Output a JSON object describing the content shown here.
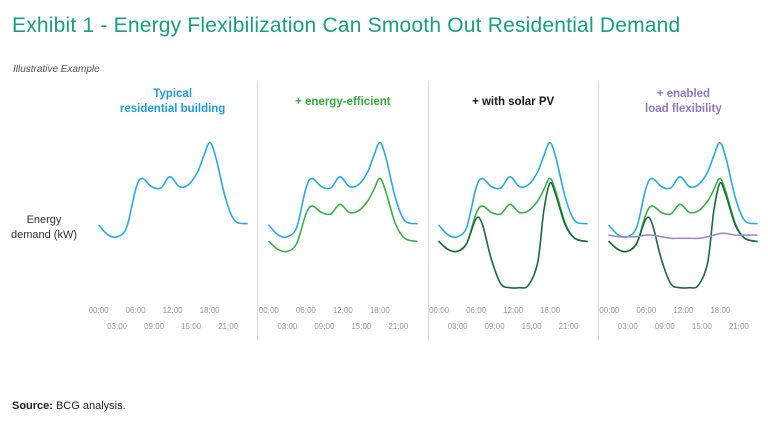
{
  "page": {
    "title": "Exhibit 1 - Energy Flexibilization Can Smooth Out Residential Demand",
    "note": "Illustrative Example",
    "ylabel": "Energy\ndemand (kW)",
    "source_label": "Source:",
    "source_text": "BCG analysis."
  },
  "colors": {
    "exhibit_title": "#18a07b",
    "typical_blue": "#2aa9e0",
    "efficient_green": "#3aae49",
    "solar_dark_green": "#1b6b3a",
    "flexibility_purple": "#a08cc8",
    "divider": "#d9d9d9",
    "tick_gray": "#999999"
  },
  "chart_data": [
    {
      "type": "line",
      "title": "Typical\nresidential building",
      "title_color": "#1e9cd7",
      "xlabel": "",
      "ylabel": "Energy demand (kW)",
      "xlim": [
        0,
        24
      ],
      "ylim": [
        0,
        10
      ],
      "grid": false,
      "legend": "none",
      "x": [
        0,
        1.5,
        3,
        4.5,
        6,
        7,
        8.5,
        10,
        11.5,
        13,
        14.5,
        16,
        17,
        18,
        19,
        20.5,
        22,
        24
      ],
      "series": [
        {
          "name": "typical-demand",
          "color": "#2aa9e0",
          "values": [
            4.3,
            3.7,
            3.6,
            4.2,
            6.6,
            7.2,
            6.7,
            6.6,
            7.3,
            6.7,
            6.8,
            7.6,
            8.6,
            9.4,
            8.4,
            6.0,
            4.6,
            4.4
          ]
        }
      ],
      "xticks": [
        {
          "t": 0,
          "label": "00:00",
          "row": 1
        },
        {
          "t": 3,
          "label": "03:00",
          "row": 2
        },
        {
          "t": 6,
          "label": "06:00",
          "row": 1
        },
        {
          "t": 9,
          "label": "09:00",
          "row": 2
        },
        {
          "t": 12,
          "label": "12:00",
          "row": 1
        },
        {
          "t": 15,
          "label": "15:00",
          "row": 2
        },
        {
          "t": 18,
          "label": "18:00",
          "row": 1
        },
        {
          "t": 21,
          "label": "21:00",
          "row": 2
        }
      ]
    },
    {
      "type": "line",
      "title": "+ energy-efficient",
      "title_color": "#35a93c",
      "xlabel": "",
      "ylabel": "Energy demand (kW)",
      "xlim": [
        0,
        24
      ],
      "ylim": [
        0,
        10
      ],
      "grid": false,
      "legend": "none",
      "x": [
        0,
        1.5,
        3,
        4.5,
        6,
        7,
        8.5,
        10,
        11.5,
        13,
        14.5,
        16,
        17,
        18,
        19,
        20.5,
        22,
        24
      ],
      "series": [
        {
          "name": "typical-demand",
          "color": "#2aa9e0",
          "values": [
            4.3,
            3.7,
            3.6,
            4.2,
            6.6,
            7.2,
            6.7,
            6.6,
            7.3,
            6.7,
            6.8,
            7.6,
            8.6,
            9.4,
            8.4,
            6.0,
            4.6,
            4.4
          ]
        },
        {
          "name": "efficient-demand",
          "color": "#3aae49",
          "values": [
            3.3,
            2.8,
            2.7,
            3.2,
            5.0,
            5.5,
            5.1,
            5.0,
            5.6,
            5.1,
            5.2,
            5.8,
            6.5,
            7.2,
            6.3,
            4.4,
            3.5,
            3.3
          ]
        }
      ],
      "xticks": [
        {
          "t": 0,
          "label": "00:00",
          "row": 1
        },
        {
          "t": 3,
          "label": "03:00",
          "row": 2
        },
        {
          "t": 6,
          "label": "06:00",
          "row": 1
        },
        {
          "t": 9,
          "label": "09:00",
          "row": 2
        },
        {
          "t": 12,
          "label": "12:00",
          "row": 1
        },
        {
          "t": 15,
          "label": "15:00",
          "row": 2
        },
        {
          "t": 18,
          "label": "18:00",
          "row": 1
        },
        {
          "t": 21,
          "label": "21:00",
          "row": 2
        }
      ]
    },
    {
      "type": "line",
      "title": "+ with solar PV",
      "title_color": "#1a1a1a",
      "xlabel": "",
      "ylabel": "Energy demand (kW)",
      "xlim": [
        0,
        24
      ],
      "ylim": [
        0,
        10
      ],
      "grid": false,
      "legend": "none",
      "x": [
        0,
        1.5,
        3,
        4.5,
        6,
        7,
        8.5,
        10,
        11.5,
        13,
        14.5,
        16,
        17,
        18,
        19,
        20.5,
        22,
        24
      ],
      "series": [
        {
          "name": "typical-demand",
          "color": "#2aa9e0",
          "values": [
            4.3,
            3.7,
            3.6,
            4.2,
            6.6,
            7.2,
            6.7,
            6.6,
            7.3,
            6.7,
            6.8,
            7.6,
            8.6,
            9.4,
            8.4,
            6.0,
            4.6,
            4.4
          ]
        },
        {
          "name": "efficient-demand",
          "color": "#3aae49",
          "values": [
            3.3,
            2.8,
            2.7,
            3.2,
            5.0,
            5.5,
            5.1,
            5.0,
            5.6,
            5.1,
            5.2,
            5.8,
            6.5,
            7.2,
            6.3,
            4.4,
            3.5,
            3.3
          ]
        },
        {
          "name": "net-demand-with-solar",
          "color": "#1b6b3a",
          "values": [
            3.3,
            2.8,
            2.7,
            3.2,
            4.7,
            4.4,
            2.2,
            0.7,
            0.45,
            0.45,
            0.6,
            2.0,
            5.2,
            6.9,
            6.1,
            4.3,
            3.5,
            3.3
          ]
        }
      ],
      "xticks": [
        {
          "t": 0,
          "label": "00:00",
          "row": 1
        },
        {
          "t": 3,
          "label": "03:00",
          "row": 2
        },
        {
          "t": 6,
          "label": "06:00",
          "row": 1
        },
        {
          "t": 9,
          "label": "09:00",
          "row": 2
        },
        {
          "t": 12,
          "label": "12:00",
          "row": 1
        },
        {
          "t": 15,
          "label": "15:00",
          "row": 2
        },
        {
          "t": 18,
          "label": "18:00",
          "row": 1
        },
        {
          "t": 21,
          "label": "21:00",
          "row": 2
        }
      ]
    },
    {
      "type": "line",
      "title": "+ enabled\nload flexibility",
      "title_color": "#9477c4",
      "xlabel": "",
      "ylabel": "Energy demand (kW)",
      "xlim": [
        0,
        24
      ],
      "ylim": [
        0,
        10
      ],
      "grid": false,
      "legend": "none",
      "x": [
        0,
        1.5,
        3,
        4.5,
        6,
        7,
        8.5,
        10,
        11.5,
        13,
        14.5,
        16,
        17,
        18,
        19,
        20.5,
        22,
        24
      ],
      "series": [
        {
          "name": "typical-demand",
          "color": "#2aa9e0",
          "values": [
            4.3,
            3.7,
            3.6,
            4.2,
            6.6,
            7.2,
            6.7,
            6.6,
            7.3,
            6.7,
            6.8,
            7.6,
            8.6,
            9.4,
            8.4,
            6.0,
            4.6,
            4.4
          ]
        },
        {
          "name": "efficient-demand",
          "color": "#3aae49",
          "values": [
            3.3,
            2.8,
            2.7,
            3.2,
            5.0,
            5.5,
            5.1,
            5.0,
            5.6,
            5.1,
            5.2,
            5.8,
            6.5,
            7.2,
            6.3,
            4.4,
            3.5,
            3.3
          ]
        },
        {
          "name": "net-demand-with-solar",
          "color": "#1b6b3a",
          "values": [
            3.3,
            2.8,
            2.7,
            3.2,
            4.7,
            4.4,
            2.2,
            0.7,
            0.45,
            0.45,
            0.6,
            2.0,
            5.2,
            6.9,
            6.1,
            4.3,
            3.5,
            3.3
          ]
        },
        {
          "name": "flexible-load-profile",
          "color": "#a08cc8",
          "values": [
            3.7,
            3.6,
            3.6,
            3.6,
            3.7,
            3.7,
            3.6,
            3.5,
            3.5,
            3.5,
            3.5,
            3.6,
            3.7,
            3.8,
            3.8,
            3.7,
            3.7,
            3.7
          ]
        }
      ],
      "xticks": [
        {
          "t": 0,
          "label": "00:00",
          "row": 1
        },
        {
          "t": 3,
          "label": "03:00",
          "row": 2
        },
        {
          "t": 6,
          "label": "06:00",
          "row": 1
        },
        {
          "t": 9,
          "label": "09:00",
          "row": 2
        },
        {
          "t": 12,
          "label": "12:00",
          "row": 1
        },
        {
          "t": 15,
          "label": "15:00",
          "row": 2
        },
        {
          "t": 18,
          "label": "18:00",
          "row": 1
        },
        {
          "t": 21,
          "label": "21:00",
          "row": 2
        }
      ]
    }
  ]
}
